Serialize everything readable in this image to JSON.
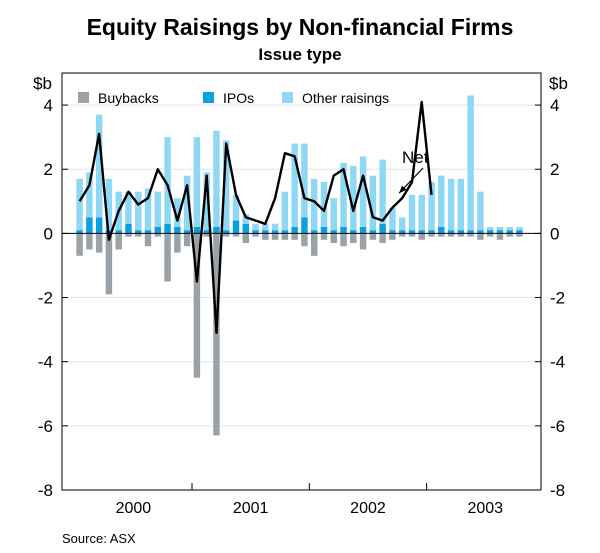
{
  "chart_data": {
    "type": "bar",
    "title": "Equity Raisings by Non-financial Firms",
    "subtitle": "Issue type",
    "ylabel_left": "$b",
    "ylabel_right": "$b",
    "ylim": [
      -8,
      5
    ],
    "yticks": [
      -8,
      -6,
      -4,
      -2,
      0,
      2,
      4
    ],
    "ytick_labels_left": [
      "-8",
      "-6",
      "-4",
      "-2",
      "0",
      "2",
      "4"
    ],
    "ytick_labels_right": [
      "-8",
      "-6",
      "-4",
      "-2",
      "0",
      "2",
      "4"
    ],
    "year_labels": [
      "2000",
      "2001",
      "2002",
      "2003"
    ],
    "year_label_positions": [
      6,
      18,
      30,
      42
    ],
    "period_count": 46,
    "legend": [
      {
        "name": "Buybacks",
        "color": "#9aa2a7"
      },
      {
        "name": "IPOs",
        "color": "#0a9fdf"
      },
      {
        "name": "Other raisings",
        "color": "#8fd8f5"
      }
    ],
    "series": [
      {
        "name": "Buybacks",
        "color": "#9aa2a7",
        "values": [
          -0.7,
          -0.5,
          -0.6,
          -1.9,
          -0.5,
          -0.1,
          -0.1,
          -0.4,
          -0.1,
          -1.5,
          -0.6,
          -0.4,
          -4.5,
          -0.1,
          -6.3,
          -0.1,
          -0.1,
          -0.3,
          -0.1,
          -0.2,
          -0.2,
          -0.2,
          -0.2,
          -0.4,
          -0.7,
          -0.2,
          -0.3,
          -0.4,
          -0.3,
          -0.5,
          -0.2,
          -0.3,
          -0.2,
          -0.1,
          -0.1,
          -0.2,
          -0.1,
          -0.1,
          -0.1,
          -0.1,
          -0.1,
          -0.2,
          -0.1,
          -0.2,
          -0.1,
          -0.1
        ]
      },
      {
        "name": "IPOs",
        "color": "#0a9fdf",
        "values": [
          0.1,
          0.5,
          0.5,
          0.1,
          0.1,
          0.3,
          0.1,
          0.1,
          0.2,
          0.3,
          0.2,
          0.1,
          0.2,
          0.1,
          0.2,
          0.1,
          0.4,
          0.3,
          0.1,
          0.1,
          0.1,
          0.1,
          0.2,
          0.5,
          0.1,
          0.2,
          0.1,
          0.2,
          0.1,
          0.2,
          0.1,
          0.3,
          0.1,
          0.1,
          0.1,
          0.1,
          0.1,
          0.2,
          0.1,
          0.1,
          0.1,
          0.1,
          0.1,
          0.1,
          0.1,
          0.1
        ]
      },
      {
        "name": "Other raisings",
        "color": "#8fd8f5",
        "values": [
          1.6,
          1.4,
          3.2,
          1.6,
          1.2,
          1.0,
          1.2,
          1.3,
          1.1,
          2.7,
          0.9,
          1.7,
          2.8,
          1.8,
          3.0,
          2.8,
          0.8,
          0.3,
          0.2,
          0.2,
          0.2,
          1.2,
          2.6,
          2.3,
          1.6,
          1.4,
          1.0,
          2.0,
          2.0,
          2.2,
          1.7,
          2.0,
          0.7,
          0.4,
          1.1,
          1.1,
          1.5,
          1.6,
          1.6,
          1.6,
          4.2,
          1.2,
          0.1,
          0.1,
          0.1,
          0.1
        ]
      },
      {
        "name": "Net",
        "color": "#000000",
        "values": [
          1.0,
          1.5,
          3.1,
          -0.2,
          0.7,
          1.3,
          0.9,
          1.1,
          2.0,
          1.5,
          0.4,
          1.5,
          -1.5,
          1.8,
          -3.1,
          2.8,
          1.2,
          0.5,
          0.4,
          0.3,
          1.1,
          2.5,
          2.4,
          1.1,
          1.0,
          0.7,
          1.8,
          2.0,
          0.7,
          1.8,
          0.5,
          0.4,
          0.8,
          1.1,
          1.6,
          4.1,
          1.2
        ]
      }
    ],
    "net_visible_points": 37,
    "annotations": [
      {
        "text": "Net"
      }
    ],
    "source": "Source: ASX"
  }
}
